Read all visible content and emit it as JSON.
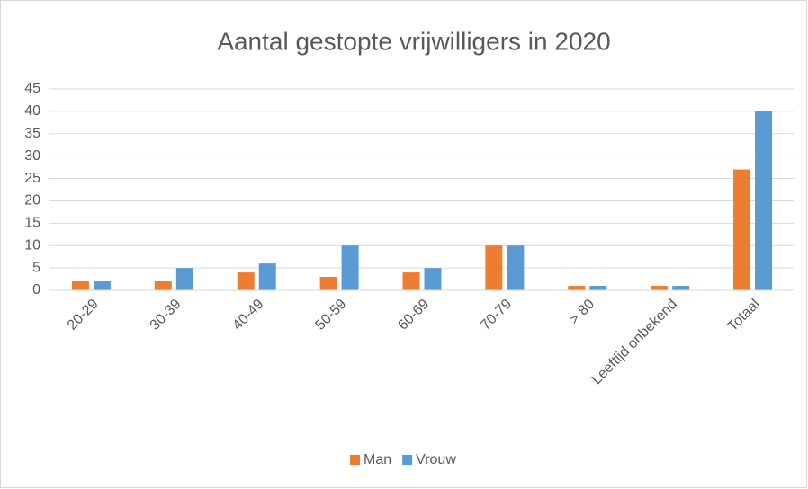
{
  "chart_data": {
    "type": "bar",
    "title": "Aantal gestopte vrijwilligers in 2020",
    "categories": [
      "20-29",
      "30-39",
      "40-49",
      "50-59",
      "60-69",
      "70-79",
      "> 80",
      "Leeftijd onbekend",
      "Totaal"
    ],
    "series": [
      {
        "name": "Man",
        "color": "#ed7d31",
        "values": [
          2,
          2,
          4,
          3,
          4,
          10,
          1,
          1,
          27
        ]
      },
      {
        "name": "Vrouw",
        "color": "#5b9bd5",
        "values": [
          2,
          5,
          6,
          10,
          5,
          10,
          1,
          1,
          40
        ]
      }
    ],
    "ylim": [
      0,
      45
    ],
    "yticks": [
      0,
      5,
      10,
      15,
      20,
      25,
      30,
      35,
      40,
      45
    ],
    "grid": true,
    "legend": "bottom"
  }
}
